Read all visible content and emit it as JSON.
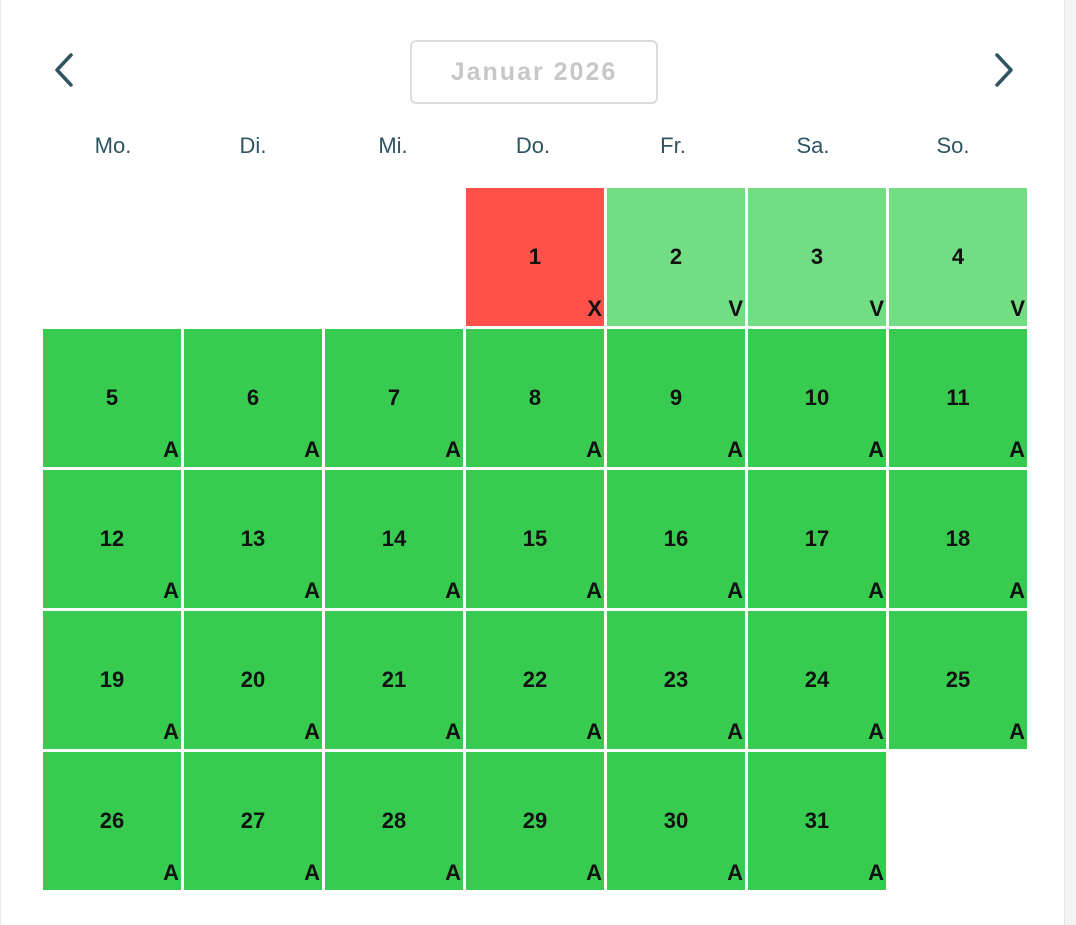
{
  "calendar": {
    "month_label": "Januar 2026",
    "prev_icon": "chevron-left-icon",
    "next_icon": "chevron-right-icon",
    "weekdays": [
      "Mo.",
      "Di.",
      "Mi.",
      "Do.",
      "Fr.",
      "Sa.",
      "So."
    ],
    "status_colors": {
      "A": "#37cc4f",
      "V": "#72dd83",
      "X": "#ff5049"
    },
    "days": [
      {
        "day": "1",
        "code": "X"
      },
      {
        "day": "2",
        "code": "V"
      },
      {
        "day": "3",
        "code": "V"
      },
      {
        "day": "4",
        "code": "V"
      },
      {
        "day": "5",
        "code": "A"
      },
      {
        "day": "6",
        "code": "A"
      },
      {
        "day": "7",
        "code": "A"
      },
      {
        "day": "8",
        "code": "A"
      },
      {
        "day": "9",
        "code": "A"
      },
      {
        "day": "10",
        "code": "A"
      },
      {
        "day": "11",
        "code": "A"
      },
      {
        "day": "12",
        "code": "A"
      },
      {
        "day": "13",
        "code": "A"
      },
      {
        "day": "14",
        "code": "A"
      },
      {
        "day": "15",
        "code": "A"
      },
      {
        "day": "16",
        "code": "A"
      },
      {
        "day": "17",
        "code": "A"
      },
      {
        "day": "18",
        "code": "A"
      },
      {
        "day": "19",
        "code": "A"
      },
      {
        "day": "20",
        "code": "A"
      },
      {
        "day": "21",
        "code": "A"
      },
      {
        "day": "22",
        "code": "A"
      },
      {
        "day": "23",
        "code": "A"
      },
      {
        "day": "24",
        "code": "A"
      },
      {
        "day": "25",
        "code": "A"
      },
      {
        "day": "26",
        "code": "A"
      },
      {
        "day": "27",
        "code": "A"
      },
      {
        "day": "28",
        "code": "A"
      },
      {
        "day": "29",
        "code": "A"
      },
      {
        "day": "30",
        "code": "A"
      },
      {
        "day": "31",
        "code": "A"
      }
    ]
  }
}
